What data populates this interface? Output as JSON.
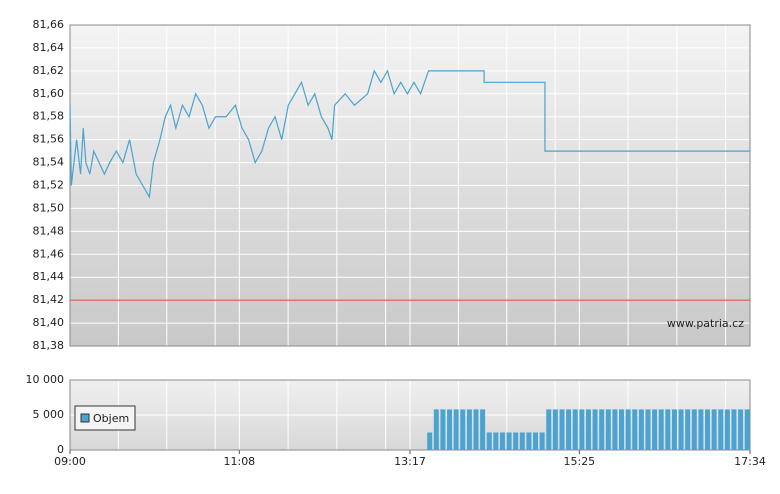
{
  "chart_data": [
    {
      "type": "line",
      "x": [
        "09:00",
        "09:01",
        "09:05",
        "09:08",
        "09:10",
        "09:12",
        "09:15",
        "09:18",
        "09:22",
        "09:26",
        "09:30",
        "09:35",
        "09:40",
        "09:45",
        "09:50",
        "09:55",
        "10:00",
        "10:03",
        "10:08",
        "10:12",
        "10:16",
        "10:20",
        "10:25",
        "10:30",
        "10:35",
        "10:40",
        "10:45",
        "10:50",
        "10:58",
        "11:05",
        "11:10",
        "11:15",
        "11:20",
        "11:25",
        "11:30",
        "11:35",
        "11:40",
        "11:45",
        "11:50",
        "11:55",
        "12:00",
        "12:05",
        "12:10",
        "12:15",
        "12:18",
        "12:20",
        "12:28",
        "12:35",
        "12:45",
        "12:50",
        "12:55",
        "13:00",
        "13:05",
        "13:10",
        "13:15",
        "13:20",
        "13:25",
        "13:31",
        "14:13",
        "14:13",
        "14:59",
        "14:59",
        "17:34"
      ],
      "series": [
        {
          "color": "#4aa3d0",
          "values": [
            81.59,
            81.52,
            81.56,
            81.53,
            81.57,
            81.54,
            81.53,
            81.55,
            81.54,
            81.53,
            81.54,
            81.55,
            81.54,
            81.56,
            81.53,
            81.52,
            81.51,
            81.54,
            81.56,
            81.58,
            81.59,
            81.57,
            81.59,
            81.58,
            81.6,
            81.59,
            81.57,
            81.58,
            81.58,
            81.59,
            81.57,
            81.56,
            81.54,
            81.55,
            81.57,
            81.58,
            81.56,
            81.59,
            81.6,
            81.61,
            81.59,
            81.6,
            81.58,
            81.57,
            81.56,
            81.59,
            81.6,
            81.59,
            81.6,
            81.62,
            81.61,
            81.62,
            81.6,
            81.61,
            81.6,
            81.61,
            81.6,
            81.62,
            81.62,
            81.61,
            81.61,
            81.55,
            81.55
          ]
        }
      ],
      "xlim": [
        "09:00",
        "17:34"
      ],
      "ylim": [
        81.38,
        81.66
      ],
      "yticks": [
        {
          "value": 81.38,
          "label": "81,38"
        },
        {
          "value": 81.4,
          "label": "81,40"
        },
        {
          "value": 81.42,
          "label": "81,42"
        },
        {
          "value": 81.44,
          "label": "81,44"
        },
        {
          "value": 81.46,
          "label": "81,46"
        },
        {
          "value": 81.48,
          "label": "81,48"
        },
        {
          "value": 81.5,
          "label": "81,50"
        },
        {
          "value": 81.52,
          "label": "81,52"
        },
        {
          "value": 81.54,
          "label": "81,54"
        },
        {
          "value": 81.56,
          "label": "81,56"
        },
        {
          "value": 81.58,
          "label": "81,58"
        },
        {
          "value": 81.6,
          "label": "81,60"
        },
        {
          "value": 81.62,
          "label": "81,62"
        },
        {
          "value": 81.64,
          "label": "81,64"
        },
        {
          "value": 81.66,
          "label": "81,66"
        }
      ],
      "reference_line": {
        "value": 81.42,
        "color": "#e0402a"
      },
      "watermark": "www.patria.cz",
      "grid": true
    },
    {
      "type": "bar",
      "x": [
        "13:30",
        "13:35",
        "13:40",
        "13:45",
        "13:50",
        "13:55",
        "14:00",
        "14:05",
        "14:10",
        "14:15",
        "14:20",
        "14:25",
        "14:30",
        "14:35",
        "14:40",
        "14:45",
        "14:50",
        "14:55",
        "15:00",
        "15:05",
        "15:10",
        "15:15",
        "15:20",
        "15:25",
        "15:30",
        "15:35",
        "15:40",
        "15:45",
        "15:50",
        "15:55",
        "16:00",
        "16:05",
        "16:10",
        "16:15",
        "16:20",
        "16:25",
        "16:30",
        "16:35",
        "16:40",
        "16:45",
        "16:50",
        "16:55",
        "17:00",
        "17:05",
        "17:10",
        "17:15",
        "17:20",
        "17:25",
        "17:30"
      ],
      "series": [
        {
          "name": "Objem",
          "color": "#4aa3d0",
          "values": [
            2500,
            5800,
            5800,
            5800,
            5800,
            5800,
            5800,
            5800,
            5800,
            2500,
            2500,
            2500,
            2500,
            2500,
            2500,
            2500,
            2500,
            2500,
            5800,
            5800,
            5800,
            5800,
            5800,
            5800,
            5800,
            5800,
            5800,
            5800,
            5800,
            5800,
            5800,
            5800,
            5800,
            5800,
            5800,
            5800,
            5800,
            5800,
            5800,
            5800,
            5800,
            5800,
            5800,
            5800,
            5800,
            5800,
            5800,
            5800,
            5800
          ]
        }
      ],
      "xlim": [
        "09:00",
        "17:34"
      ],
      "xticks": [
        "09:00",
        "11:08",
        "13:17",
        "15:25",
        "17:34"
      ],
      "ylim": [
        0,
        10000
      ],
      "yticks": [
        0,
        {
          "value": 5000,
          "label": "5 000"
        },
        {
          "value": 10000,
          "label": "10 000"
        }
      ],
      "legend": "upper-left",
      "grid": true
    }
  ]
}
